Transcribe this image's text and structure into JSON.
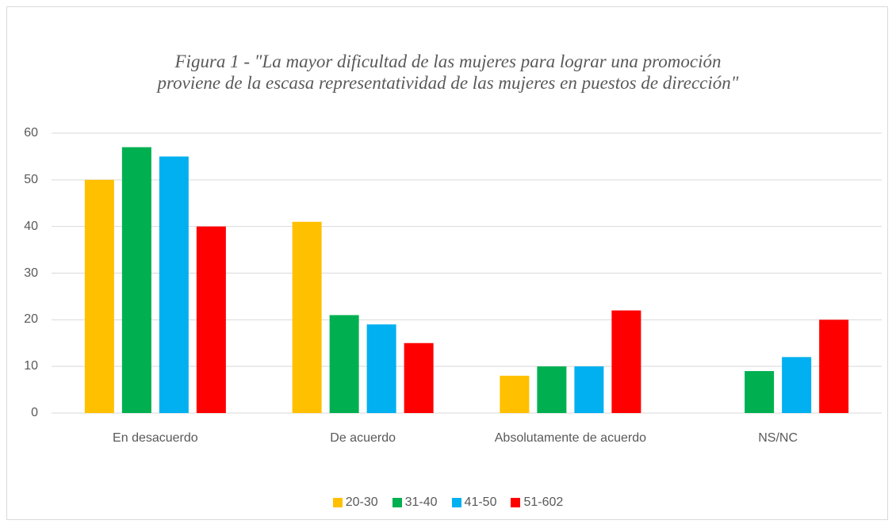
{
  "chart_data": {
    "type": "bar",
    "title": "Figura 1 - \"La mayor dificultad de las mujeres para lograr una promoción proviene de la escasa representatividad de las mujeres en puestos de dirección\"",
    "categories": [
      "En desacuerdo",
      "De acuerdo",
      "Absolutamente de acuerdo",
      "NS/NC"
    ],
    "series": [
      {
        "name": "20-30",
        "color": "#ffc000",
        "values": [
          50,
          41,
          8,
          0
        ]
      },
      {
        "name": "31-40",
        "color": "#00b050",
        "values": [
          57,
          21,
          10,
          9
        ]
      },
      {
        "name": "41-50",
        "color": "#00b0f0",
        "values": [
          55,
          19,
          10,
          12
        ]
      },
      {
        "name": "51-602",
        "color": "#ff0000",
        "values": [
          40,
          15,
          22,
          20
        ]
      }
    ],
    "ylim": [
      0,
      60
    ],
    "yticks": [
      0,
      10,
      20,
      30,
      40,
      50,
      60
    ],
    "grid": true,
    "legend": "bottom"
  }
}
